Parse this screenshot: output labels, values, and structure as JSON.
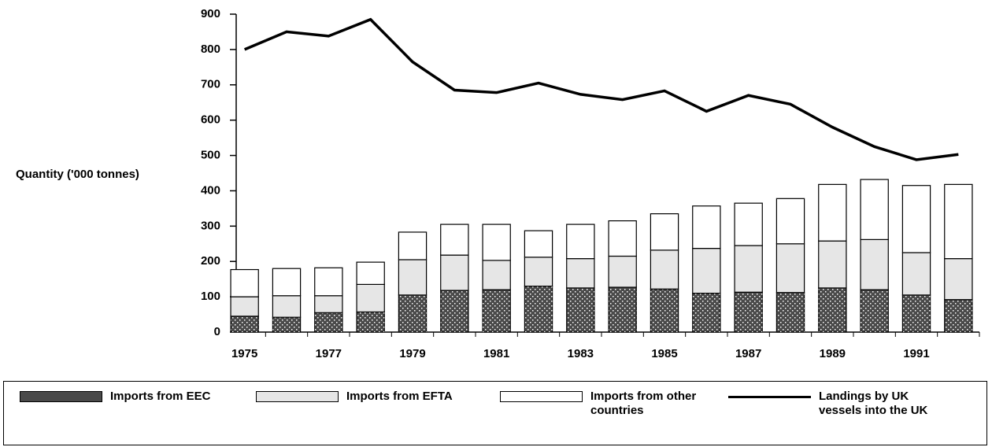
{
  "chart_data": {
    "type": "bar",
    "stacked": true,
    "y_label": "Quantity ('000 tonnes)",
    "categories": [
      "1975",
      null,
      "1977",
      null,
      "1979",
      null,
      "1981",
      null,
      "1983",
      null,
      "1985",
      null,
      "1987",
      null,
      "1989",
      null,
      "1991",
      null
    ],
    "series": [
      {
        "name": "Imports from EEC",
        "type": "bar",
        "color": "#4a4a4a",
        "values": [
          45,
          42,
          55,
          57,
          105,
          118,
          120,
          130,
          125,
          127,
          122,
          110,
          113,
          112,
          125,
          120,
          105,
          92
        ]
      },
      {
        "name": "Imports from EFTA",
        "type": "bar",
        "color": "#e6e6e6",
        "values": [
          55,
          61,
          48,
          78,
          100,
          100,
          83,
          82,
          83,
          88,
          110,
          127,
          132,
          138,
          133,
          142,
          120,
          116
        ]
      },
      {
        "name": "Imports from other countries",
        "type": "bar",
        "color": "#ffffff",
        "values": [
          77,
          77,
          79,
          63,
          78,
          87,
          102,
          75,
          97,
          100,
          103,
          120,
          120,
          128,
          160,
          170,
          190,
          210
        ]
      },
      {
        "name": "Landings by UK vessels into the UK",
        "type": "line",
        "color": "#000000",
        "values": [
          800,
          850,
          838,
          885,
          765,
          685,
          678,
          705,
          673,
          658,
          683,
          625,
          670,
          645,
          580,
          525,
          488,
          503
        ]
      }
    ],
    "ylim": [
      0,
      900
    ],
    "yticks": [
      0,
      100,
      200,
      300,
      400,
      500,
      600,
      700,
      800,
      900
    ]
  }
}
